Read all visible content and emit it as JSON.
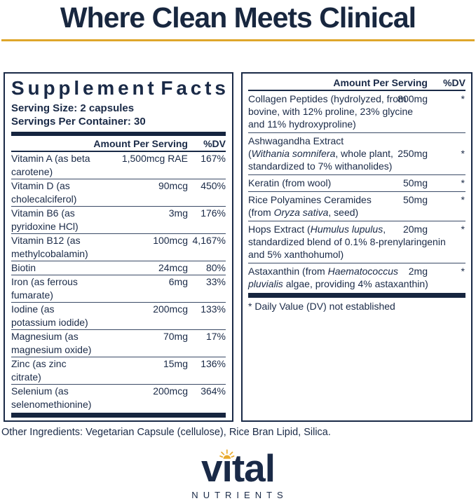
{
  "header": {
    "title": "Where Clean Meets Clinical"
  },
  "colors": {
    "navy": "#1a2a47",
    "gold": "#dfa62b"
  },
  "left_panel": {
    "title": "Supplement Facts",
    "serving_size": "Serving Size: 2 capsules",
    "servings_per_container": "Servings Per Container: 30",
    "col_amount": "Amount Per Serving",
    "col_dv": "%DV",
    "rows": [
      {
        "name": "Vitamin A (as beta carotene)",
        "amount": "1,500mcg RAE",
        "dv": "167%"
      },
      {
        "name": "Vitamin D (as cholecalciferol)",
        "amount": "90mcg",
        "dv": "450%"
      },
      {
        "name": "Vitamin B6 (as pyridoxine HCl)",
        "amount": "3mg",
        "dv": "176%"
      },
      {
        "name": "Vitamin B12 (as methylcobalamin)",
        "amount": "100mcg",
        "dv": "4,167%"
      },
      {
        "name": "Biotin",
        "amount": "24mcg",
        "dv": "80%"
      },
      {
        "name": "Iron (as ferrous fumarate)",
        "amount": "6mg",
        "dv": "33%"
      },
      {
        "name": "Iodine (as potassium iodide)",
        "amount": "200mcg",
        "dv": "133%"
      },
      {
        "name": "Magnesium (as magnesium oxide)",
        "amount": "70mg",
        "dv": "17%"
      },
      {
        "name": "Zinc (as zinc citrate)",
        "amount": "15mg",
        "dv": "136%"
      },
      {
        "name": "Selenium (as selenomethionine)",
        "amount": "200mcg",
        "dv": "364%"
      }
    ]
  },
  "right_panel": {
    "col_amount": "Amount Per Serving",
    "col_dv": "%DV",
    "rows": [
      {
        "lines": [
          [
            {
              "t": "Collagen Peptides (hydrolyzed, from"
            }
          ],
          [
            {
              "t": "bovine, with 12% proline, 23% glycine"
            }
          ],
          [
            {
              "t": "and 11% hydroxyproline)"
            }
          ]
        ],
        "amount": "800mg",
        "amount_line": 0,
        "dv": "*",
        "dv_line": 0
      },
      {
        "lines": [
          [
            {
              "t": "Ashwagandha Extract"
            }
          ],
          [
            {
              "t": "("
            },
            {
              "t": "Withania somnifera",
              "i": true
            },
            {
              "t": ", whole plant,"
            }
          ],
          [
            {
              "t": "standardized to 7% withanolides)"
            }
          ]
        ],
        "amount": "250mg",
        "amount_line": 1,
        "dv": "*",
        "dv_line": 1
      },
      {
        "lines": [
          [
            {
              "t": "Keratin (from wool)"
            }
          ]
        ],
        "amount": "50mg",
        "amount_line": 0,
        "dv": "*",
        "dv_line": 0
      },
      {
        "lines": [
          [
            {
              "t": "Rice Polyamines Ceramides"
            }
          ],
          [
            {
              "t": "(from "
            },
            {
              "t": "Oryza sativa",
              "i": true
            },
            {
              "t": ", seed)"
            }
          ]
        ],
        "amount": "50mg",
        "amount_line": 0,
        "dv": "*",
        "dv_line": 0
      },
      {
        "lines": [
          [
            {
              "t": "Hops Extract ("
            },
            {
              "t": "Humulus lupulus",
              "i": true
            },
            {
              "t": ","
            }
          ],
          [
            {
              "t": "standardized blend of 0.1% 8-prenylaringenin"
            }
          ],
          [
            {
              "t": "and 5% xanthohumol)"
            }
          ]
        ],
        "amount": "20mg",
        "amount_line": 0,
        "dv": "*",
        "dv_line": 0
      },
      {
        "lines": [
          [
            {
              "t": "Astaxanthin (from "
            },
            {
              "t": "Haematococcus",
              "i": true
            }
          ],
          [
            {
              "t": "pluvialis",
              "i": true
            },
            {
              "t": " algae, providing 4% astaxanthin)"
            }
          ]
        ],
        "amount": "2mg",
        "amount_line": 0,
        "dv": "*",
        "dv_line": 0
      }
    ],
    "footnote": "* Daily Value (DV) not established"
  },
  "other_ingredients": "Other Ingredients: Vegetarian Capsule (cellulose), Rice Bran Lipid, Silica.",
  "logo": {
    "wordmark": "vital",
    "subtext": "NUTRIENTS"
  }
}
